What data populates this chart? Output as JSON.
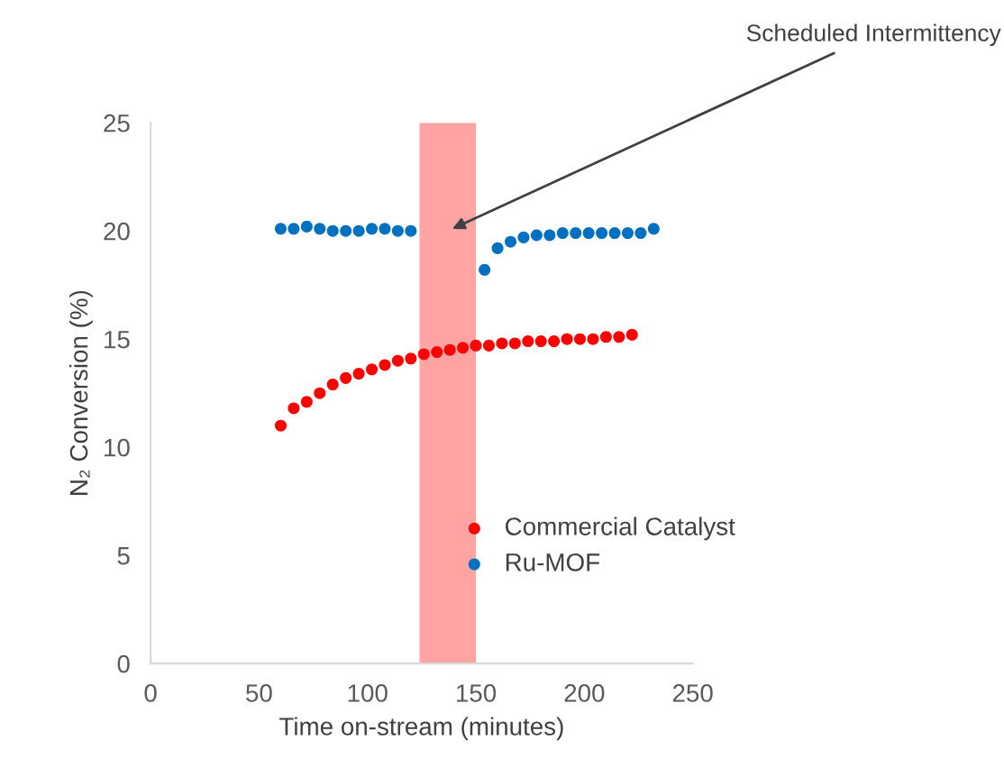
{
  "chart_data": {
    "type": "scatter",
    "xlabel": "Time on-stream (minutes)",
    "ylabel": "N₂ Conversion (%)",
    "xlim": [
      0,
      250
    ],
    "xticks": [
      0,
      50,
      100,
      150,
      200,
      250
    ],
    "ylim": [
      0,
      25
    ],
    "yticks": [
      0,
      5,
      10,
      15,
      20,
      25
    ],
    "grid": false,
    "legend": "bottom right",
    "marker": "circle",
    "series": [
      {
        "name": "Commercial Catalyst",
        "color": "#ff0000",
        "x": [
          60,
          66,
          72,
          78,
          84,
          90,
          96,
          102,
          108,
          114,
          120,
          126,
          132,
          138,
          144,
          150,
          156,
          162,
          168,
          174,
          180,
          186,
          192,
          198,
          204,
          210,
          216,
          222
        ],
        "values": [
          11.0,
          11.8,
          12.1,
          12.5,
          12.9,
          13.2,
          13.4,
          13.6,
          13.8,
          14.0,
          14.1,
          14.3,
          14.4,
          14.5,
          14.6,
          14.7,
          14.7,
          14.8,
          14.8,
          14.9,
          14.9,
          14.9,
          15.0,
          15.0,
          15.0,
          15.1,
          15.1,
          15.2
        ]
      },
      {
        "name": "Ru-MOF",
        "color": "#0070c0",
        "x": [
          60,
          66,
          72,
          78,
          84,
          90,
          96,
          102,
          108,
          114,
          120,
          154,
          160,
          166,
          172,
          178,
          184,
          190,
          196,
          202,
          208,
          214,
          220,
          226,
          232
        ],
        "values": [
          20.1,
          20.1,
          20.2,
          20.1,
          20.0,
          20.0,
          20.0,
          20.1,
          20.1,
          20.0,
          20.0,
          18.2,
          19.2,
          19.5,
          19.7,
          19.8,
          19.8,
          19.9,
          19.9,
          19.9,
          19.9,
          19.9,
          19.9,
          19.9,
          20.1
        ]
      }
    ],
    "bands": [
      {
        "axis": "x",
        "from": 124,
        "to": 150,
        "color": "#ffa3a3"
      }
    ],
    "annotations": [
      "Scheduled Intermittency"
    ]
  }
}
